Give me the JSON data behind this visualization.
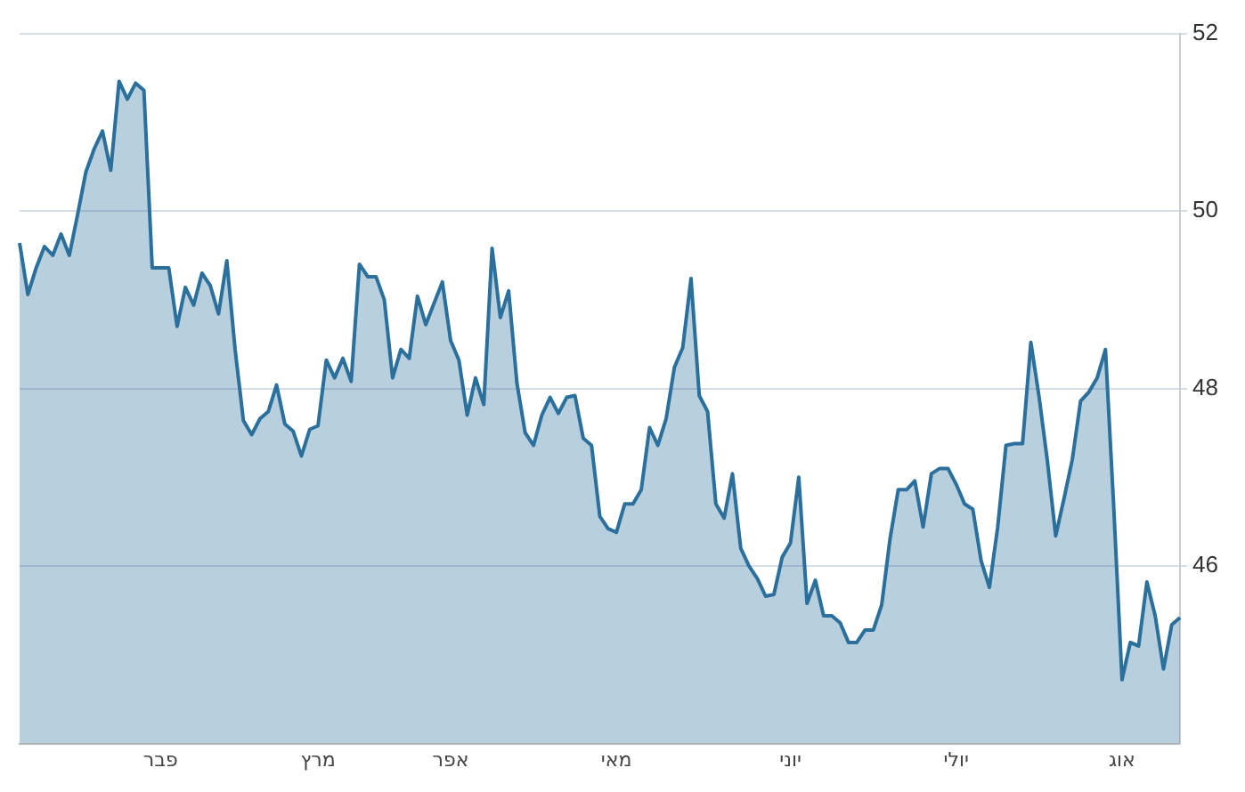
{
  "chart_data": {
    "type": "area",
    "color": "#2b6f9c",
    "marker": "none",
    "grid": "y",
    "ylim": [
      44,
      52
    ],
    "yticks": [
      46,
      48,
      50,
      52
    ],
    "categories": [
      null,
      null,
      null,
      null,
      null,
      null,
      null,
      null,
      null,
      null,
      null,
      null,
      null,
      null,
      null,
      null,
      null,
      "פבר",
      null,
      null,
      null,
      null,
      null,
      null,
      null,
      null,
      null,
      null,
      null,
      null,
      null,
      null,
      null,
      null,
      null,
      null,
      "מרץ",
      null,
      null,
      null,
      null,
      null,
      null,
      null,
      null,
      null,
      null,
      null,
      null,
      null,
      null,
      null,
      "אפר",
      null,
      null,
      null,
      null,
      null,
      null,
      null,
      null,
      null,
      null,
      null,
      null,
      null,
      null,
      null,
      null,
      null,
      null,
      null,
      "מאי",
      null,
      null,
      null,
      null,
      null,
      null,
      null,
      null,
      null,
      null,
      null,
      null,
      null,
      null,
      null,
      null,
      null,
      null,
      null,
      null,
      "יוני",
      null,
      null,
      null,
      null,
      null,
      null,
      null,
      null,
      null,
      null,
      null,
      null,
      null,
      null,
      null,
      null,
      null,
      null,
      null,
      "יולי",
      null,
      null,
      null,
      null,
      null,
      null,
      null,
      null,
      null,
      null,
      null,
      null,
      null,
      null,
      null,
      null,
      null,
      null,
      null,
      "אוג",
      null,
      null,
      null,
      null,
      null,
      null,
      null
    ],
    "values": [
      49.64,
      49.06,
      49.36,
      49.6,
      49.5,
      49.74,
      49.5,
      49.96,
      50.44,
      50.7,
      50.9,
      50.46,
      51.46,
      51.26,
      51.44,
      51.36,
      49.36,
      49.36,
      49.36,
      48.7,
      49.14,
      48.94,
      49.3,
      49.16,
      48.84,
      49.44,
      48.44,
      47.64,
      47.48,
      47.66,
      47.74,
      48.04,
      47.6,
      47.52,
      47.24,
      47.54,
      47.58,
      48.32,
      48.12,
      48.34,
      48.08,
      49.4,
      49.26,
      49.26,
      49.0,
      48.12,
      48.44,
      48.34,
      49.04,
      48.72,
      48.96,
      49.2,
      48.54,
      48.32,
      47.7,
      48.12,
      47.82,
      49.58,
      48.8,
      49.1,
      48.06,
      47.5,
      47.36,
      47.7,
      47.9,
      47.72,
      47.9,
      47.92,
      47.44,
      47.36,
      46.56,
      46.42,
      46.38,
      46.7,
      46.7,
      46.86,
      47.56,
      47.36,
      47.66,
      48.24,
      48.46,
      49.24,
      47.92,
      47.74,
      46.7,
      46.54,
      47.04,
      46.2,
      46.0,
      45.86,
      45.66,
      45.68,
      46.1,
      46.26,
      47.0,
      45.58,
      45.84,
      45.44,
      45.44,
      45.36,
      45.14,
      45.14,
      45.28,
      45.28,
      45.56,
      46.3,
      46.86,
      46.86,
      46.96,
      46.44,
      47.04,
      47.1,
      47.1,
      46.92,
      46.7,
      46.64,
      46.06,
      45.76,
      46.44,
      47.36,
      47.38,
      47.38,
      48.52,
      47.9,
      47.18,
      46.34,
      46.76,
      47.2,
      47.86,
      47.96,
      48.12,
      48.44,
      46.66,
      44.72,
      45.14,
      45.1,
      45.82,
      45.44,
      44.84,
      45.34,
      45.42
    ]
  }
}
